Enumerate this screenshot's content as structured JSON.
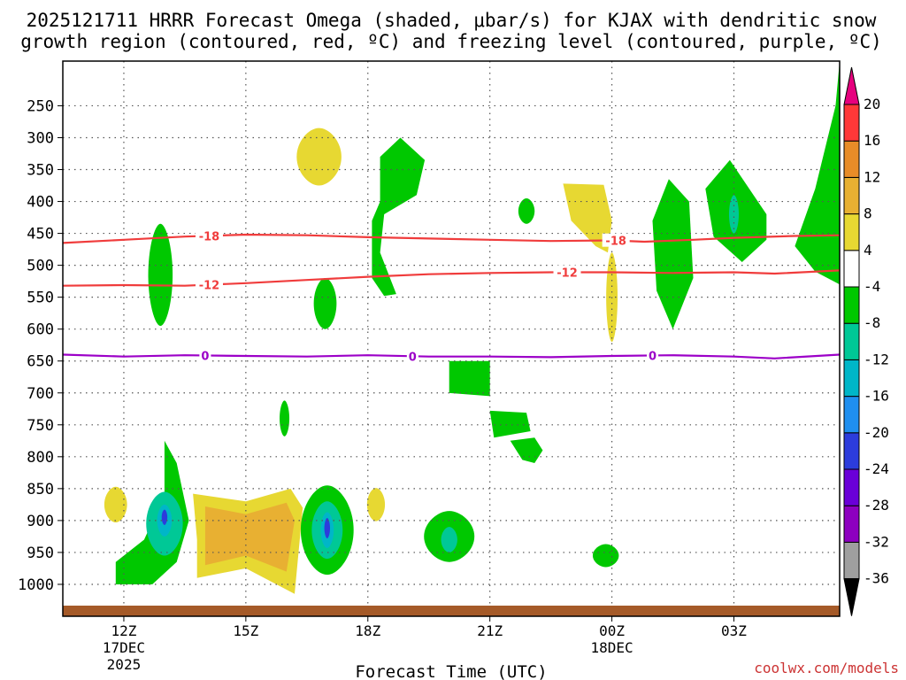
{
  "chart_data": {
    "type": "contour",
    "title_line1": "2025121711 HRRR Forecast Omega (shaded, μbar/s) for KJAX with dendritic snow",
    "title_line2": "growth region (contoured, red, ºC) and freezing level (contoured, purple, ºC)",
    "xlabel": "Forecast Time (UTC)",
    "credit": "coolwx.com/models",
    "credit_color": "#cc3333",
    "x_range_hours": [
      -1.5,
      17.6
    ],
    "y_range_hpa": [
      1050,
      180
    ],
    "x_ticks": [
      {
        "hour": 0,
        "label": "12Z",
        "sub": [
          "17DEC",
          "2025"
        ]
      },
      {
        "hour": 3,
        "label": "15Z",
        "sub": []
      },
      {
        "hour": 6,
        "label": "18Z",
        "sub": []
      },
      {
        "hour": 9,
        "label": "21Z",
        "sub": []
      },
      {
        "hour": 12,
        "label": "00Z",
        "sub": [
          "18DEC"
        ]
      },
      {
        "hour": 15,
        "label": "03Z",
        "sub": []
      }
    ],
    "y_ticks": [
      250,
      300,
      350,
      400,
      450,
      500,
      550,
      600,
      650,
      700,
      750,
      800,
      850,
      900,
      950,
      1000
    ],
    "colorbar": {
      "levels": [
        -36,
        -32,
        -28,
        -24,
        -20,
        -16,
        -12,
        -8,
        -4,
        4,
        8,
        12,
        16,
        20
      ],
      "colors": [
        "#9f9f9f",
        "#8d00c0",
        "#6a00d8",
        "#2c3cdc",
        "#1f8ff0",
        "#00b6c8",
        "#00c896",
        "#00c800",
        "#ffffff",
        "#e7d832",
        "#e8b032",
        "#e88c28",
        "#ff3838",
        "#e6007e"
      ],
      "under_color": "#000000",
      "over_color": "#e6007e"
    },
    "contours": [
      {
        "name": "temp_-18",
        "label": "-18",
        "color": "#f03c3c",
        "points": [
          [
            -1.5,
            465
          ],
          [
            0,
            460
          ],
          [
            1.5,
            455
          ],
          [
            3,
            452
          ],
          [
            4.5,
            453
          ],
          [
            6,
            456
          ],
          [
            7.5,
            458
          ],
          [
            9,
            460
          ],
          [
            10.5,
            462
          ],
          [
            12,
            461
          ],
          [
            12.8,
            463
          ],
          [
            14,
            460
          ],
          [
            15,
            457
          ],
          [
            16.5,
            454
          ],
          [
            17.6,
            453
          ]
        ],
        "label_hours": [
          2.1,
          12.1
        ]
      },
      {
        "name": "temp_-12",
        "label": "-12",
        "color": "#f03c3c",
        "points": [
          [
            -1.5,
            532
          ],
          [
            0,
            531
          ],
          [
            1.5,
            532
          ],
          [
            3,
            528
          ],
          [
            4.5,
            523
          ],
          [
            6,
            518
          ],
          [
            7.5,
            514
          ],
          [
            9,
            512
          ],
          [
            10.5,
            511
          ],
          [
            12,
            511
          ],
          [
            13.5,
            512
          ],
          [
            15,
            511
          ],
          [
            16,
            513
          ],
          [
            17.6,
            508
          ]
        ],
        "label_hours": [
          2.1,
          10.9
        ]
      },
      {
        "name": "temp_0",
        "label": "0",
        "color": "#9c00c8",
        "points": [
          [
            -1.5,
            640
          ],
          [
            0,
            643
          ],
          [
            1.5,
            641
          ],
          [
            3,
            642
          ],
          [
            4.5,
            643
          ],
          [
            6,
            641
          ],
          [
            7.5,
            643
          ],
          [
            9,
            643
          ],
          [
            10.5,
            644
          ],
          [
            12,
            642
          ],
          [
            13.5,
            641
          ],
          [
            15,
            643
          ],
          [
            16,
            646
          ],
          [
            17.6,
            640
          ]
        ],
        "label_hours": [
          2.0,
          7.1,
          13.0
        ]
      }
    ],
    "shaded_regions": [
      {
        "level": -8,
        "shape": "blob",
        "cx": 0.9,
        "cy": 515,
        "rx": 0.3,
        "ry": 80
      },
      {
        "level": 4,
        "shape": "blob",
        "cx": 4.8,
        "cy": 330,
        "rx": 0.55,
        "ry": 45
      },
      {
        "level": -8,
        "shape": "poly",
        "points": [
          [
            6.3,
            330
          ],
          [
            6.8,
            300
          ],
          [
            7.4,
            335
          ],
          [
            7.2,
            390
          ],
          [
            6.4,
            420
          ],
          [
            6.3,
            480
          ],
          [
            6.7,
            545
          ],
          [
            6.4,
            548
          ],
          [
            6.1,
            520
          ],
          [
            6.1,
            430
          ],
          [
            6.3,
            400
          ]
        ]
      },
      {
        "level": -8,
        "shape": "blob",
        "cx": 9.9,
        "cy": 415,
        "rx": 0.2,
        "ry": 20
      },
      {
        "level": 4,
        "shape": "poly",
        "points": [
          [
            10.8,
            372
          ],
          [
            11.8,
            374
          ],
          [
            12.0,
            430
          ],
          [
            11.9,
            480
          ],
          [
            11.6,
            470
          ],
          [
            11.0,
            430
          ]
        ]
      },
      {
        "level": 4,
        "shape": "blob",
        "cx": 12.0,
        "cy": 550,
        "rx": 0.14,
        "ry": 70
      },
      {
        "level": -8,
        "shape": "poly",
        "points": [
          [
            13.0,
            430
          ],
          [
            13.4,
            365
          ],
          [
            13.9,
            400
          ],
          [
            14.0,
            520
          ],
          [
            13.5,
            600
          ],
          [
            13.1,
            540
          ]
        ]
      },
      {
        "level": -8,
        "shape": "poly",
        "points": [
          [
            14.3,
            380
          ],
          [
            14.9,
            335
          ],
          [
            15.8,
            420
          ],
          [
            15.8,
            460
          ],
          [
            15.2,
            495
          ],
          [
            14.5,
            455
          ]
        ]
      },
      {
        "level": -12,
        "shape": "blob",
        "cx": 15.0,
        "cy": 420,
        "rx": 0.12,
        "ry": 30
      },
      {
        "level": -8,
        "shape": "poly",
        "points": [
          [
            17.6,
            180
          ],
          [
            17.6,
            530
          ],
          [
            17.0,
            510
          ],
          [
            16.5,
            470
          ],
          [
            17.0,
            380
          ],
          [
            17.5,
            250
          ]
        ]
      },
      {
        "level": -8,
        "shape": "blob",
        "cx": 4.95,
        "cy": 560,
        "rx": 0.28,
        "ry": 40
      },
      {
        "level": -8,
        "shape": "blob",
        "cx": 3.95,
        "cy": 740,
        "rx": 0.12,
        "ry": 28
      },
      {
        "level": -8,
        "shape": "poly",
        "points": [
          [
            8.0,
            650
          ],
          [
            9.0,
            650
          ],
          [
            9.0,
            705
          ],
          [
            8.0,
            700
          ]
        ]
      },
      {
        "level": -8,
        "shape": "poly",
        "points": [
          [
            9.0,
            728
          ],
          [
            9.9,
            731
          ],
          [
            10.0,
            760
          ],
          [
            9.1,
            770
          ]
        ]
      },
      {
        "level": -8,
        "shape": "poly",
        "points": [
          [
            9.5,
            775
          ],
          [
            10.1,
            770
          ],
          [
            10.3,
            790
          ],
          [
            10.1,
            810
          ],
          [
            9.8,
            805
          ]
        ]
      },
      {
        "level": 4,
        "shape": "blob",
        "cx": -0.2,
        "cy": 875,
        "rx": 0.28,
        "ry": 28
      },
      {
        "level": 4,
        "shape": "poly",
        "points": [
          [
            1.7,
            858
          ],
          [
            3.0,
            870
          ],
          [
            4.1,
            850
          ],
          [
            4.4,
            880
          ],
          [
            4.2,
            1015
          ],
          [
            3.0,
            975
          ],
          [
            1.8,
            990
          ],
          [
            1.8,
            930
          ]
        ]
      },
      {
        "level": 8,
        "shape": "poly",
        "points": [
          [
            2.0,
            878
          ],
          [
            3.0,
            890
          ],
          [
            4.0,
            872
          ],
          [
            4.2,
            900
          ],
          [
            4.0,
            980
          ],
          [
            3.0,
            955
          ],
          [
            2.0,
            970
          ]
        ]
      },
      {
        "level": 4,
        "shape": "blob",
        "cx": 6.2,
        "cy": 875,
        "rx": 0.22,
        "ry": 26
      },
      {
        "level": -8,
        "shape": "poly",
        "points": [
          [
            -0.2,
            965
          ],
          [
            0.5,
            930
          ],
          [
            1.0,
            860
          ],
          [
            1.0,
            775
          ],
          [
            1.3,
            810
          ],
          [
            1.6,
            900
          ],
          [
            1.3,
            965
          ],
          [
            0.7,
            1000
          ],
          [
            -0.2,
            1000
          ]
        ]
      },
      {
        "level": -12,
        "shape": "blob",
        "cx": 1.0,
        "cy": 905,
        "rx": 0.45,
        "ry": 50
      },
      {
        "level": -16,
        "shape": "blob",
        "cx": 1.0,
        "cy": 900,
        "rx": 0.18,
        "ry": 25
      },
      {
        "level": -24,
        "shape": "blob",
        "cx": 1.0,
        "cy": 895,
        "rx": 0.07,
        "ry": 12
      },
      {
        "level": -8,
        "shape": "blob",
        "cx": 5.0,
        "cy": 915,
        "rx": 0.65,
        "ry": 70
      },
      {
        "level": -12,
        "shape": "blob",
        "cx": 5.0,
        "cy": 915,
        "rx": 0.38,
        "ry": 45
      },
      {
        "level": -16,
        "shape": "blob",
        "cx": 5.0,
        "cy": 915,
        "rx": 0.16,
        "ry": 28
      },
      {
        "level": -24,
        "shape": "blob",
        "cx": 5.0,
        "cy": 912,
        "rx": 0.07,
        "ry": 16
      },
      {
        "level": -8,
        "shape": "blob",
        "cx": 8.0,
        "cy": 925,
        "rx": 0.62,
        "ry": 40
      },
      {
        "level": -12,
        "shape": "blob",
        "cx": 8.0,
        "cy": 930,
        "rx": 0.2,
        "ry": 20
      },
      {
        "level": -8,
        "shape": "blob",
        "cx": 11.85,
        "cy": 955,
        "rx": 0.32,
        "ry": 18
      }
    ],
    "ground_color": "#a55a28"
  }
}
